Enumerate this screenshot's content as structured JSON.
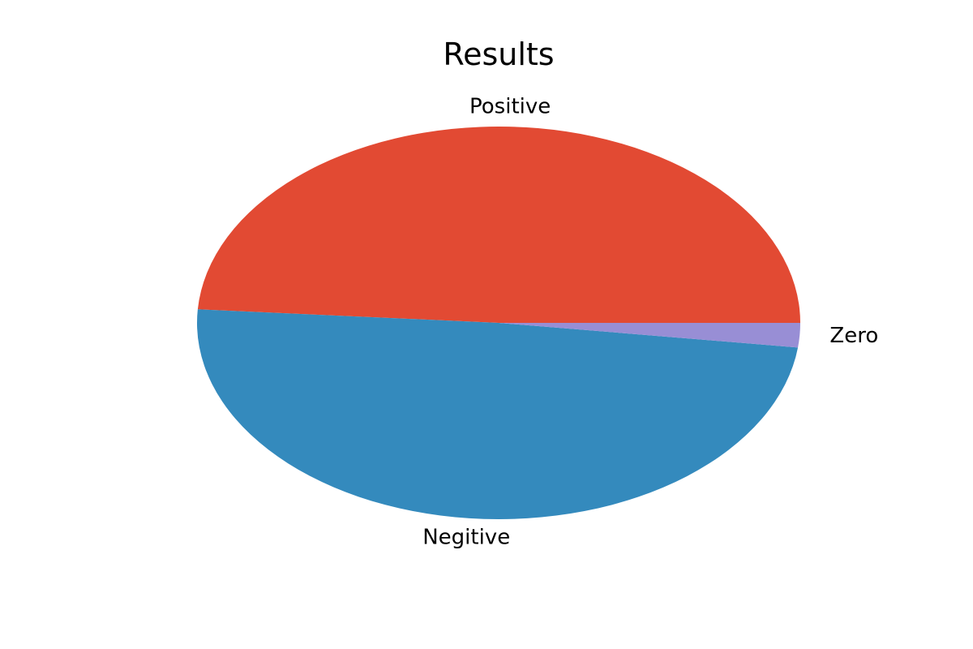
{
  "chart_data": {
    "type": "pie",
    "title": "Results",
    "labels": [
      "Positive",
      "Negitive",
      "Zero"
    ],
    "values": [
      48.9,
      49.1,
      2.0
    ],
    "colors": [
      "#E24A33",
      "#348ABD",
      "#988ED5"
    ],
    "start_angle_deg": 0,
    "direction": "counterclockwise"
  }
}
